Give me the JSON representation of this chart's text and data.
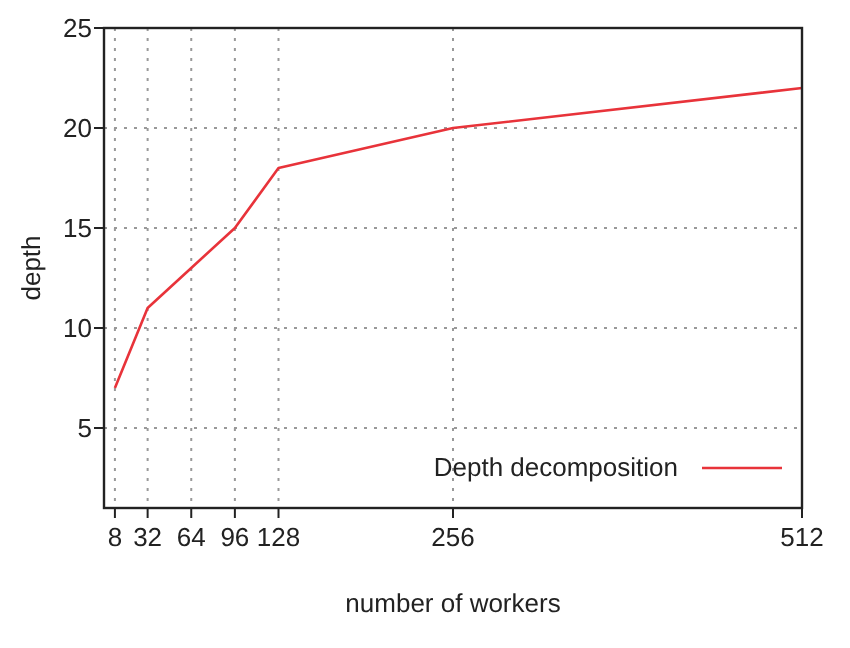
{
  "chart_data": {
    "type": "line",
    "xlabel": "number of workers",
    "ylabel": "depth",
    "x": [
      8,
      32,
      64,
      96,
      128,
      256,
      512
    ],
    "series": [
      {
        "name": "Depth decomposition",
        "color": "#e8333a",
        "values": [
          7,
          11,
          13,
          15,
          18,
          20,
          22
        ]
      }
    ],
    "xlim": [
      0,
      512
    ],
    "xticks": [
      8,
      32,
      64,
      96,
      128,
      256,
      512
    ],
    "ylim": [
      1,
      25
    ],
    "yticks": [
      5,
      10,
      15,
      20,
      25
    ],
    "grid": true,
    "legend": "bottom right",
    "marker": "none",
    "line_style": "solid"
  }
}
